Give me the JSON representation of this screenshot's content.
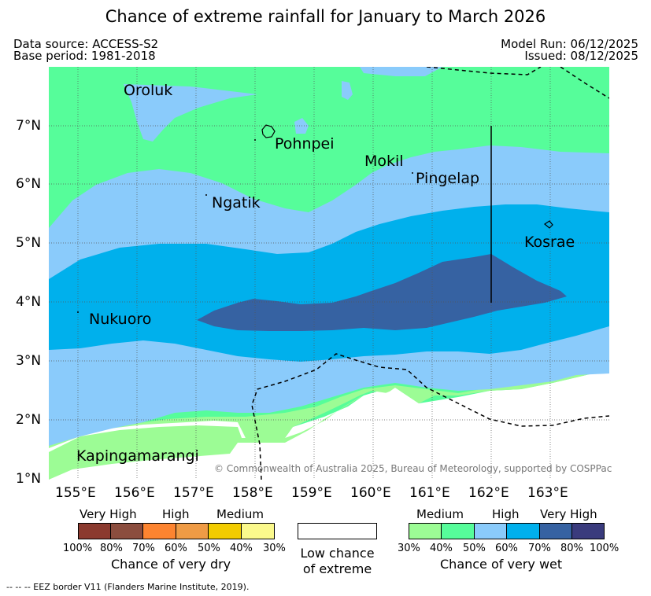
{
  "title": "Chance of extreme rainfall for January to March 2026",
  "data_source": "Data source: ACCESS-S2",
  "base_period": "Base period: 1981-2018",
  "model_run": "Model Run: 06/12/2025",
  "issued": "Issued: 08/12/2025",
  "map": {
    "lat_labels": [
      "7°N",
      "6°N",
      "5°N",
      "4°N",
      "3°N",
      "2°N",
      "1°N"
    ],
    "lon_labels": [
      "155°E",
      "156°E",
      "157°E",
      "158°E",
      "159°E",
      "160°E",
      "161°E",
      "162°E",
      "163°E"
    ],
    "places": {
      "oroluk": "Oroluk",
      "pohnpei": "Pohnpei",
      "mokil": "Mokil",
      "pingelap": "Pingelap",
      "ngatik": "Ngatik",
      "kosrae": "Kosrae",
      "nukuoro": "Nukuoro",
      "kapingamarangi": "Kapingamarangi"
    },
    "copyright": "© Commonwealth of Australia 2025, Bureau of Meteorology, supported by COSPPac",
    "colors": {
      "ocean_bg": "#ffffff",
      "wet_medium_30": "#9cfc95",
      "wet_medium_40": "#56fd9a",
      "wet_high_50": "#8acbfb",
      "wet_high_60": "#00b0ec",
      "wet_veryhigh_70": "#3662a2",
      "wet_veryhigh_80": "#3a3b7d"
    }
  },
  "legend_dry": {
    "categories": [
      "Very High",
      "High",
      "Medium"
    ],
    "ticks": [
      "100%",
      "80%",
      "70%",
      "60%",
      "50%",
      "40%",
      "30%"
    ],
    "caption": "Chance of very dry",
    "colors": [
      "#8b3a2f",
      "#8b4d3e",
      "#fd8430",
      "#ef9b45",
      "#f2cc00",
      "#fbf98c"
    ]
  },
  "legend_low": {
    "caption_line1": "Low chance",
    "caption_line2": "of extreme"
  },
  "legend_wet": {
    "categories": [
      "Medium",
      "High",
      "Very High"
    ],
    "ticks": [
      "30%",
      "40%",
      "50%",
      "60%",
      "70%",
      "80%",
      "100%"
    ],
    "caption": "Chance of very wet",
    "colors": [
      "#9cfc95",
      "#56fd9a",
      "#8acbfb",
      "#00b0ec",
      "#3662a2",
      "#3a3b7d"
    ]
  },
  "footnote": "--  --  -- EEZ border V11 (Flanders Marine Institute, 2019)."
}
